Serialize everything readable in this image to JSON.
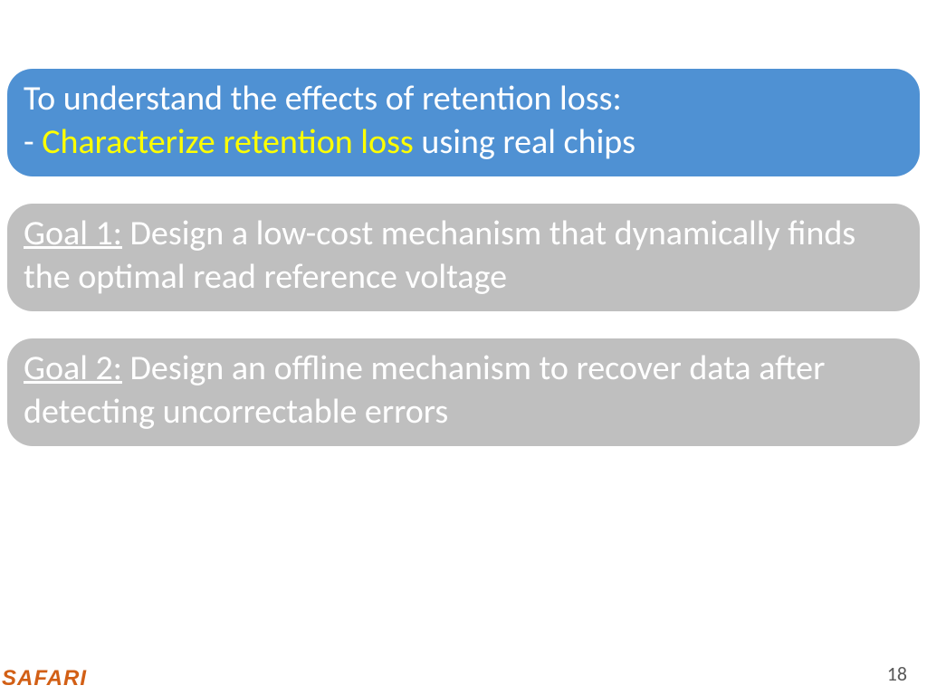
{
  "colors": {
    "blue_bg": "#4f91d3",
    "gray_bg": "#bfbfbf",
    "white": "#ffffff",
    "yellow": "#ffff00",
    "logo": "#d25f15",
    "pagenum": "#595959"
  },
  "box1": {
    "line1": "To understand the effects of retention loss:",
    "line2_prefix": " - ",
    "line2_highlight": "Characterize retention loss",
    "line2_suffix": " using real chips"
  },
  "box2": {
    "label": "Goal 1:",
    "text": " Design a low-cost mechanism that dynamically finds the optimal read reference voltage"
  },
  "box3": {
    "label": "Goal 2:",
    "text": " Design an offline mechanism to recover data after detecting uncorrectable errors"
  },
  "footer": {
    "logo": "SAFARI",
    "page": "18"
  }
}
